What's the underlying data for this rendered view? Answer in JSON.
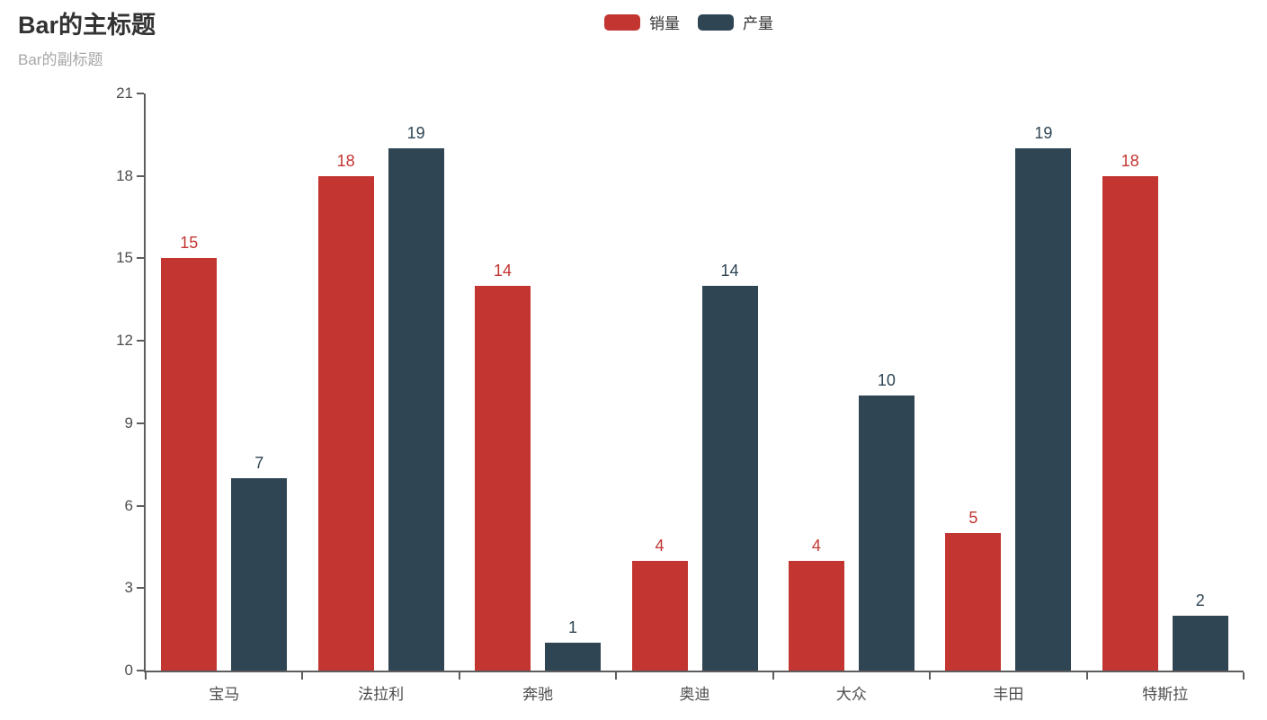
{
  "title": {
    "text": "Bar的主标题",
    "subtext": "Bar的副标题"
  },
  "chart_data": {
    "type": "bar",
    "title": "Bar的主标题",
    "subtitle": "Bar的副标题",
    "categories": [
      "宝马",
      "法拉利",
      "奔驰",
      "奥迪",
      "大众",
      "丰田",
      "特斯拉"
    ],
    "series": [
      {
        "name": "销量",
        "color": "#c23531",
        "values": [
          15,
          18,
          14,
          4,
          4,
          5,
          18
        ]
      },
      {
        "name": "产量",
        "color": "#2f4554",
        "values": [
          7,
          19,
          1,
          14,
          10,
          19,
          2
        ]
      }
    ],
    "ylim": [
      0,
      21
    ],
    "yticks": [
      0,
      3,
      6,
      9,
      12,
      15,
      18,
      21
    ],
    "grid": false,
    "legend_position": "top-center",
    "value_labels": true,
    "axis_color": "#5d5d5d",
    "axis_label_color": "#4d4d4d",
    "title_color": "#333333",
    "subtitle_color": "#a7a7a7",
    "background_color": "#ffffff"
  }
}
